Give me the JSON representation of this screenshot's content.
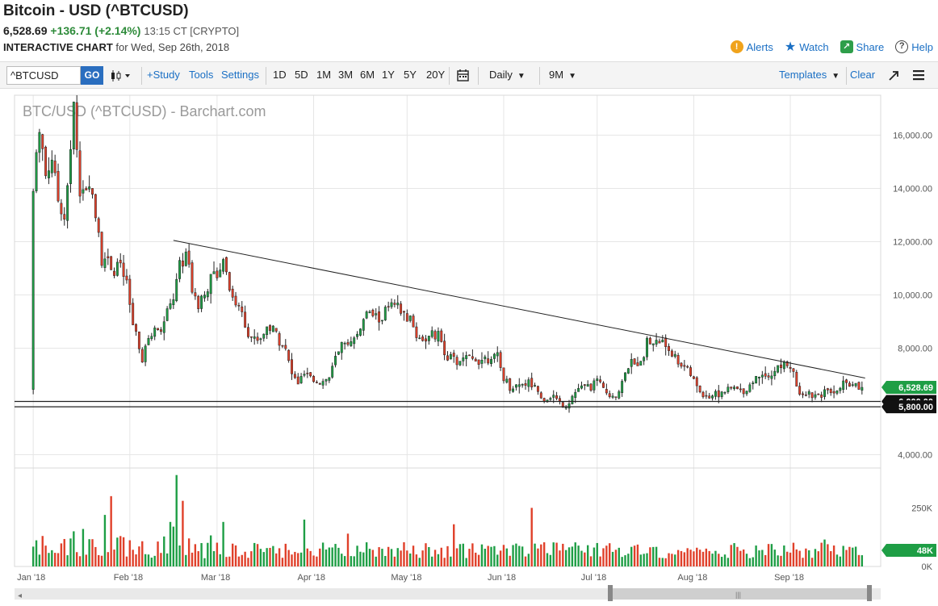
{
  "header": {
    "title": "Bitcoin - USD (^BTCUSD)",
    "last": "6,528.69",
    "change": "+136.71 (+2.14%)",
    "time": "13:15 CT [CRYPTO]",
    "subtitle_bold": "INTERACTIVE CHART",
    "subtitle_rest": " for Wed, Sep 26th, 2018",
    "actions": {
      "alerts": "Alerts",
      "watch": "Watch",
      "share": "Share",
      "help": "Help"
    },
    "action_icons": [
      "alert-icon",
      "star-icon",
      "share-icon",
      "help-icon"
    ]
  },
  "toolbar": {
    "symbol_value": "^BTCUSD",
    "go_label": "GO",
    "study": "+Study",
    "tools": "Tools",
    "settings": "Settings",
    "ranges": [
      "1D",
      "5D",
      "1M",
      "3M",
      "6M",
      "1Y",
      "5Y",
      "20Y"
    ],
    "interval": "Daily",
    "period": "9M",
    "templates": "Templates",
    "clear": "Clear"
  },
  "chart_data": {
    "type": "candlestick",
    "title": "BTC/USD (^BTCUSD) - Barchart.com",
    "ylim": [
      3500,
      17500
    ],
    "y_ticks": [
      "16,000.00",
      "14,000.00",
      "12,000.00",
      "10,000.00",
      "8,000.00",
      "6,000.00",
      "4,000.00"
    ],
    "y_tick_values": [
      16000,
      14000,
      12000,
      10000,
      8000,
      6000,
      4000
    ],
    "x_labels": [
      "Jan '18",
      "Feb '18",
      "Mar '18",
      "Apr '18",
      "May '18",
      "Jun '18",
      "Jul '18",
      "Aug '18",
      "Sep '18"
    ],
    "x_label_days": [
      1,
      32,
      60,
      91,
      121,
      152,
      182,
      213,
      244
    ],
    "day_range": [
      -5,
      273
    ],
    "last_price_label": "6,528.69",
    "last_price": 6528.69,
    "support_lines": [
      {
        "value": 6000,
        "label": "6,000.00"
      },
      {
        "value": 5800,
        "label": "5,800.00"
      }
    ],
    "trendline": {
      "from": {
        "day": 46,
        "price": 12050
      },
      "to": {
        "day": 268,
        "price": 6880
      }
    },
    "anchors": [
      [
        1,
        13850
      ],
      [
        3,
        16500
      ],
      [
        5,
        14500
      ],
      [
        7,
        15200
      ],
      [
        9,
        13600
      ],
      [
        11,
        13000
      ],
      [
        13,
        15300
      ],
      [
        14,
        17100
      ],
      [
        16,
        14200
      ],
      [
        18,
        13800
      ],
      [
        20,
        14000
      ],
      [
        22,
        12400
      ],
      [
        23,
        11300
      ],
      [
        25,
        11500
      ],
      [
        27,
        10800
      ],
      [
        29,
        11200
      ],
      [
        31,
        10300
      ],
      [
        33,
        8900
      ],
      [
        36,
        7500
      ],
      [
        38,
        8400
      ],
      [
        40,
        8700
      ],
      [
        43,
        9000
      ],
      [
        46,
        9900
      ],
      [
        48,
        11000
      ],
      [
        50,
        11600
      ],
      [
        52,
        10300
      ],
      [
        54,
        9700
      ],
      [
        56,
        10200
      ],
      [
        58,
        10500
      ],
      [
        60,
        10900
      ],
      [
        62,
        11400
      ],
      [
        64,
        10300
      ],
      [
        66,
        9700
      ],
      [
        68,
        9400
      ],
      [
        70,
        8600
      ],
      [
        72,
        8300
      ],
      [
        74,
        8400
      ],
      [
        76,
        8800
      ],
      [
        78,
        8700
      ],
      [
        80,
        8400
      ],
      [
        82,
        7900
      ],
      [
        84,
        7000
      ],
      [
        86,
        6700
      ],
      [
        88,
        7000
      ],
      [
        90,
        6900
      ],
      [
        92,
        6800
      ],
      [
        94,
        6750
      ],
      [
        96,
        6900
      ],
      [
        98,
        7600
      ],
      [
        100,
        7950
      ],
      [
        102,
        8050
      ],
      [
        104,
        8300
      ],
      [
        106,
        8800
      ],
      [
        108,
        9300
      ],
      [
        110,
        9250
      ],
      [
        112,
        9100
      ],
      [
        114,
        9400
      ],
      [
        116,
        9600
      ],
      [
        118,
        9450
      ],
      [
        120,
        9200
      ],
      [
        122,
        9050
      ],
      [
        124,
        8500
      ],
      [
        126,
        8350
      ],
      [
        128,
        8400
      ],
      [
        130,
        8500
      ],
      [
        132,
        8250
      ],
      [
        134,
        7700
      ],
      [
        136,
        7500
      ],
      [
        138,
        7450
      ],
      [
        140,
        7600
      ],
      [
        142,
        7550
      ],
      [
        144,
        7600
      ],
      [
        146,
        7650
      ],
      [
        148,
        7700
      ],
      [
        150,
        7600
      ],
      [
        152,
        6900
      ],
      [
        154,
        6500
      ],
      [
        156,
        6600
      ],
      [
        158,
        6700
      ],
      [
        160,
        6700
      ],
      [
        162,
        6650
      ],
      [
        164,
        6100
      ],
      [
        166,
        6150
      ],
      [
        168,
        6200
      ],
      [
        170,
        5950
      ],
      [
        172,
        5850
      ],
      [
        174,
        6200
      ],
      [
        176,
        6500
      ],
      [
        178,
        6500
      ],
      [
        180,
        6600
      ],
      [
        182,
        6700
      ],
      [
        184,
        6400
      ],
      [
        186,
        6300
      ],
      [
        188,
        6200
      ],
      [
        190,
        6700
      ],
      [
        192,
        7300
      ],
      [
        194,
        7400
      ],
      [
        196,
        7600
      ],
      [
        198,
        8250
      ],
      [
        200,
        8200
      ],
      [
        202,
        8250
      ],
      [
        204,
        8150
      ],
      [
        206,
        7800
      ],
      [
        208,
        7500
      ],
      [
        210,
        7350
      ],
      [
        212,
        7000
      ],
      [
        214,
        6500
      ],
      [
        216,
        6300
      ],
      [
        218,
        6200
      ],
      [
        220,
        6300
      ],
      [
        222,
        6350
      ],
      [
        224,
        6450
      ],
      [
        226,
        6500
      ],
      [
        228,
        6400
      ],
      [
        230,
        6450
      ],
      [
        232,
        6800
      ],
      [
        234,
        7000
      ],
      [
        236,
        7100
      ],
      [
        238,
        7000
      ],
      [
        240,
        7250
      ],
      [
        242,
        7400
      ],
      [
        244,
        7350
      ],
      [
        246,
        6500
      ],
      [
        248,
        6350
      ],
      [
        250,
        6300
      ],
      [
        252,
        6250
      ],
      [
        254,
        6350
      ],
      [
        256,
        6400
      ],
      [
        258,
        6450
      ],
      [
        260,
        6550
      ],
      [
        262,
        6700
      ],
      [
        264,
        6600
      ],
      [
        266,
        6520
      ],
      [
        267,
        6528.69
      ]
    ],
    "volume": {
      "ylim": [
        0,
        420000
      ],
      "y_ticks": [
        "250K",
        "0K"
      ],
      "y_tick_values": [
        250000,
        0
      ],
      "last_label": "48K",
      "last_value": 48000,
      "spikes": [
        [
          14,
          150000
        ],
        [
          17,
          160000
        ],
        [
          26,
          300000
        ],
        [
          24,
          220000
        ],
        [
          46,
          170000
        ],
        [
          47,
          390000
        ],
        [
          49,
          280000
        ],
        [
          45,
          190000
        ],
        [
          62,
          190000
        ],
        [
          88,
          200000
        ],
        [
          102,
          140000
        ],
        [
          136,
          180000
        ],
        [
          161,
          250000
        ],
        [
          182,
          100000
        ],
        [
          255,
          115000
        ]
      ]
    }
  }
}
